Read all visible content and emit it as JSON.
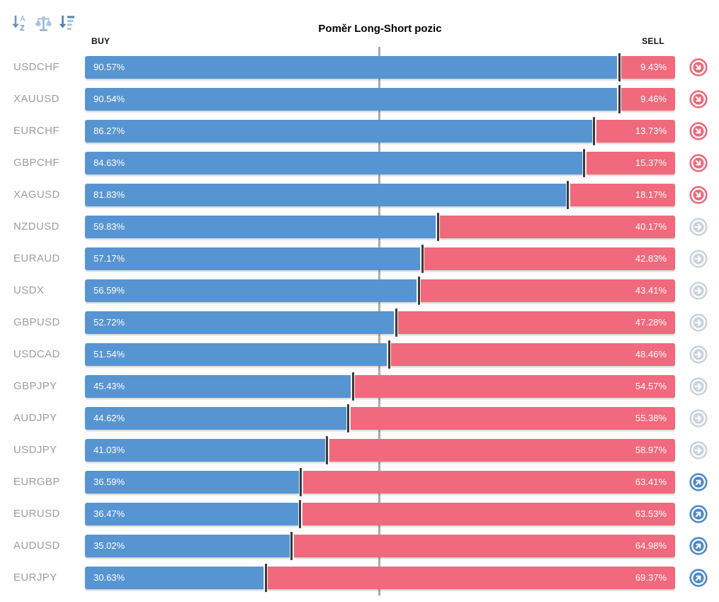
{
  "title": "Poměr Long-Short pozic",
  "columns": {
    "buy": "BUY",
    "sell": "SELL"
  },
  "toolbar": {
    "icons": [
      {
        "name": "sort-alpha-icon"
      },
      {
        "name": "balance-scale-icon"
      },
      {
        "name": "sort-amount-icon"
      }
    ]
  },
  "colors": {
    "buy": "#5794d2",
    "sell": "#f0697d",
    "marker": "#3a3a3a",
    "center_line": "#ababab",
    "label_text": "#9d9d9d",
    "signal_down": "#ee6879",
    "signal_neutral": "#c8d3df",
    "signal_up": "#4d88c8",
    "toolbar_icon_dark": "#5d88b5",
    "toolbar_icon_light": "#a9c4de"
  },
  "chart_data": {
    "type": "bar",
    "orientation": "horizontal",
    "stacked": true,
    "title": "Poměr Long-Short pozic",
    "xlim": [
      0,
      100
    ],
    "center_gridline": 50,
    "legend_position": "top",
    "categories": [
      "USDCHF",
      "XAUUSD",
      "EURCHF",
      "GBPCHF",
      "XAGUSD",
      "NZDUSD",
      "EURAUD",
      "USDX",
      "GBPUSD",
      "USDCAD",
      "GBPJPY",
      "AUDJPY",
      "USDJPY",
      "EURGBP",
      "EURUSD",
      "AUDUSD",
      "EURJPY"
    ],
    "series": [
      {
        "name": "BUY",
        "color": "#5794d2",
        "values": [
          90.57,
          90.54,
          86.27,
          84.63,
          81.83,
          59.83,
          57.17,
          56.59,
          52.72,
          51.54,
          45.43,
          44.62,
          41.03,
          36.59,
          36.47,
          35.02,
          30.63
        ],
        "labels": [
          "90.57%",
          "90.54%",
          "86.27%",
          "84.63%",
          "81.83%",
          "59.83%",
          "57.17%",
          "56.59%",
          "52.72%",
          "51.54%",
          "45.43%",
          "44.62%",
          "41.03%",
          "36.59%",
          "36.47%",
          "35.02%",
          "30.63%"
        ]
      },
      {
        "name": "SELL",
        "color": "#f0697d",
        "values": [
          9.43,
          9.46,
          13.73,
          15.37,
          18.17,
          40.17,
          42.83,
          43.41,
          47.28,
          48.46,
          54.57,
          55.38,
          58.97,
          63.41,
          63.53,
          64.98,
          69.37
        ],
        "labels": [
          "9.43%",
          "9.46%",
          "13.73%",
          "15.37%",
          "18.17%",
          "40.17%",
          "42.83%",
          "43.41%",
          "47.28%",
          "48.46%",
          "54.57%",
          "55.38%",
          "58.97%",
          "63.41%",
          "63.53%",
          "64.98%",
          "69.37%"
        ]
      }
    ],
    "signals": [
      "down",
      "down",
      "down",
      "down",
      "down",
      "neutral",
      "neutral",
      "neutral",
      "neutral",
      "neutral",
      "neutral",
      "neutral",
      "neutral",
      "up",
      "up",
      "up",
      "up"
    ]
  }
}
